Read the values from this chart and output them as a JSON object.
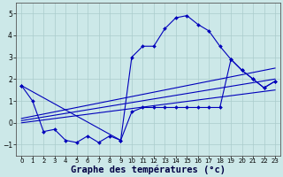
{
  "background_color": "#cce8e8",
  "grid_color": "#aacccc",
  "line_color": "#0000bb",
  "xlabel": "Graphe des températures (°c)",
  "xlabel_fontsize": 7.5,
  "ylim": [
    -1.5,
    5.5
  ],
  "yticks": [
    -1,
    0,
    1,
    2,
    3,
    4,
    5
  ],
  "xlim": [
    -0.5,
    23.5
  ],
  "xticks": [
    0,
    1,
    2,
    3,
    4,
    5,
    6,
    7,
    8,
    9,
    10,
    11,
    12,
    13,
    14,
    15,
    16,
    17,
    18,
    19,
    20,
    21,
    22,
    23
  ],
  "series": [
    {
      "x": [
        0,
        1,
        2,
        3,
        4,
        5,
        6,
        7,
        8,
        9,
        10,
        11,
        12,
        13,
        14,
        15,
        16,
        17,
        18,
        19,
        20,
        21,
        22,
        23
      ],
      "y": [
        1.7,
        1.0,
        -0.4,
        -0.3,
        -0.8,
        -0.9,
        -0.6,
        -0.9,
        -0.6,
        -0.8,
        0.5,
        0.7,
        0.7,
        0.7,
        0.7,
        0.7,
        0.7,
        0.7,
        0.7,
        2.9,
        2.4,
        2.0,
        1.6,
        1.9
      ],
      "has_marker": true
    },
    {
      "x": [
        0,
        23
      ],
      "y": [
        0.0,
        1.5
      ],
      "has_marker": false
    },
    {
      "x": [
        0,
        23
      ],
      "y": [
        0.1,
        2.0
      ],
      "has_marker": false
    },
    {
      "x": [
        0,
        23
      ],
      "y": [
        0.2,
        2.5
      ],
      "has_marker": false
    },
    {
      "x": [
        0,
        9,
        10,
        11,
        12,
        13,
        14,
        15,
        16,
        17,
        18,
        19,
        20,
        21,
        22,
        23
      ],
      "y": [
        1.7,
        -0.8,
        3.0,
        3.5,
        3.5,
        4.3,
        4.8,
        4.9,
        4.5,
        4.2,
        3.5,
        2.9,
        2.4,
        2.0,
        1.6,
        1.9
      ],
      "has_marker": true
    }
  ]
}
